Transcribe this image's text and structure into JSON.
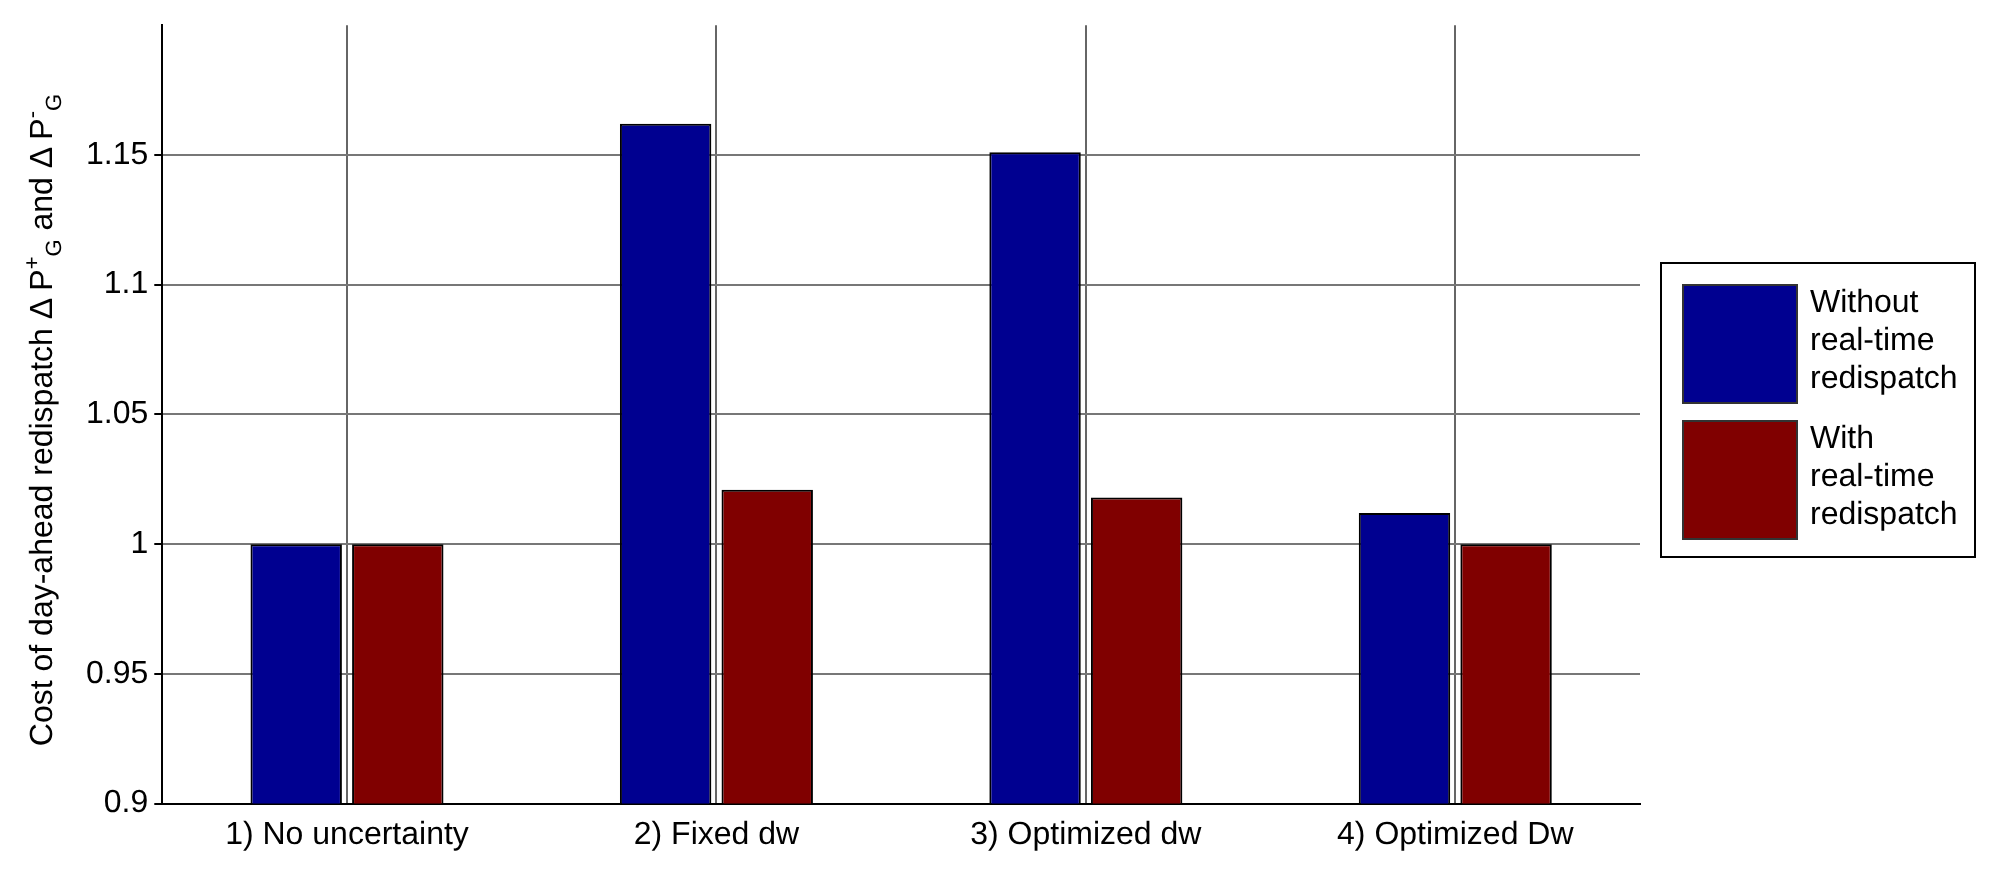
{
  "chart_data": {
    "type": "bar",
    "ylabel": "Cost of day-ahead redispatch Δ P$^{+}$$_{G}$ and Δ P$^{-}$$_{G}$",
    "categories": [
      "1) No uncertainty",
      "2) Fixed dw",
      "3) Optimized dw",
      "4) Optimized Dw"
    ],
    "series": [
      {
        "name": "Without real-time redispatch",
        "color": "#000090",
        "values": [
          1.0,
          1.162,
          1.151,
          1.012
        ]
      },
      {
        "name": "With real-time redispatch",
        "color": "#800000",
        "values": [
          1.0,
          1.021,
          1.018,
          1.0
        ]
      }
    ],
    "ylim": [
      0.9,
      1.2
    ],
    "yticks": [
      0.9,
      0.95,
      1,
      1.05,
      1.1,
      1.15
    ],
    "grid": true,
    "legend": "right"
  }
}
